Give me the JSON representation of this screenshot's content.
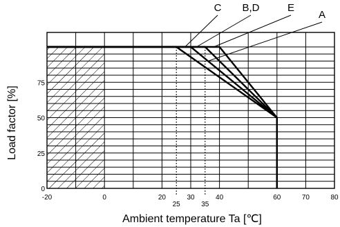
{
  "chart_data": {
    "type": "line",
    "title": "",
    "xlabel": "Ambient temperature Ta [℃]",
    "ylabel": "Load factor [%]",
    "xlim": [
      -20,
      80
    ],
    "ylim": [
      0,
      100
    ],
    "x_ticks": [
      "-20",
      "0",
      "20",
      "30",
      "40",
      "60",
      "70",
      "80"
    ],
    "x_tick_values": [
      -20,
      0,
      20,
      30,
      40,
      60,
      70,
      80
    ],
    "x_marker_ticks": [
      "25",
      "35"
    ],
    "x_marker_values": [
      25,
      35
    ],
    "y_ticks": [
      "0",
      "25",
      "50",
      "75"
    ],
    "y_tick_values": [
      0,
      25,
      50,
      75
    ],
    "grid": true,
    "grid_x_step": 10,
    "grid_y_step": 5,
    "hatched_region": {
      "x_from": -20,
      "x_to": 0
    },
    "series": [
      {
        "name": "A",
        "x": [
          -20,
          35,
          60,
          60
        ],
        "y": [
          100,
          100,
          50,
          0
        ],
        "label_anchor": [
          36,
          90
        ]
      },
      {
        "name": "B,D",
        "x": [
          -20,
          30,
          60,
          60
        ],
        "y": [
          100,
          100,
          50,
          0
        ],
        "label_anchor": [
          32,
          100
        ]
      },
      {
        "name": "C",
        "x": [
          -20,
          25,
          60,
          60
        ],
        "y": [
          100,
          100,
          50,
          0
        ],
        "label_anchor": [
          28,
          100
        ]
      },
      {
        "name": "E",
        "x": [
          -20,
          40,
          60,
          60
        ],
        "y": [
          100,
          100,
          50,
          0
        ],
        "label_anchor": [
          38,
          100
        ]
      }
    ],
    "colors": {
      "line": "#000000",
      "grid": "#000000",
      "background": "#ffffff"
    }
  }
}
